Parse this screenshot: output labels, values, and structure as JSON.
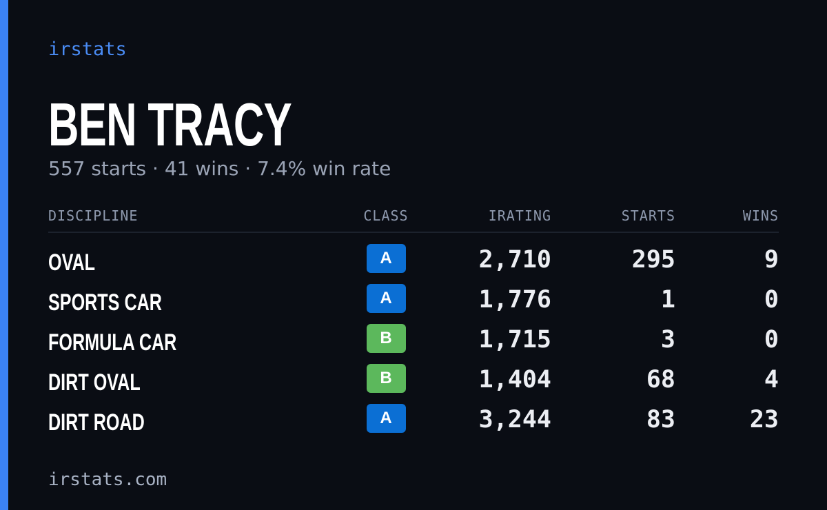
{
  "brand": "irstats",
  "driver": {
    "name": "BEN TRACY",
    "summary": "557 starts · 41 wins · 7.4% win rate"
  },
  "table": {
    "headers": [
      "DISCIPLINE",
      "CLASS",
      "IRATING",
      "STARTS",
      "WINS"
    ],
    "rows": [
      [
        "OVAL",
        "A",
        "2,710",
        "295",
        "9"
      ],
      [
        "SPORTS CAR",
        "A",
        "1,776",
        "1",
        "0"
      ],
      [
        "FORMULA CAR",
        "B",
        "1,715",
        "3",
        "0"
      ],
      [
        "DIRT OVAL",
        "B",
        "1,404",
        "68",
        "4"
      ],
      [
        "DIRT ROAD",
        "A",
        "3,244",
        "83",
        "23"
      ]
    ]
  },
  "class_colors": {
    "A": "#0b6fd4",
    "B": "#5cb85c"
  },
  "footer": "irstats.com"
}
